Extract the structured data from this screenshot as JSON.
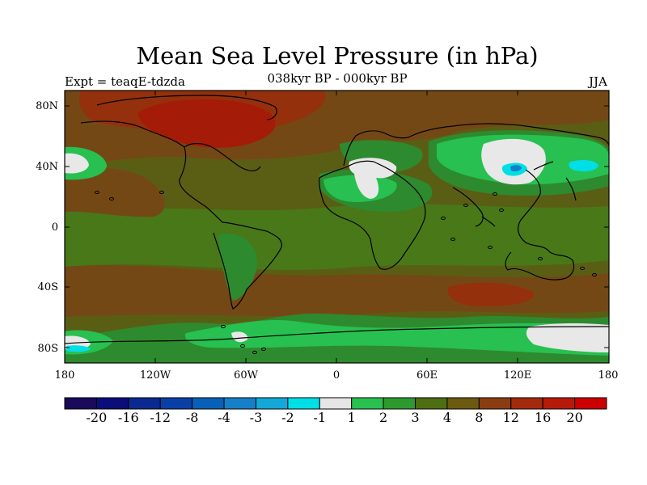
{
  "title": "Mean Sea Level Pressure (in hPa)",
  "subtitle": "038kyr BP - 000kyr BP",
  "experiment": "Expt = teaqE-tdzda",
  "season": "JJA",
  "lat_labels": [
    "80N",
    "40N",
    "0",
    "40S",
    "80S"
  ],
  "lon_labels": [
    "180",
    "120W",
    "60W",
    "0",
    "60E",
    "120E",
    "180"
  ],
  "colorbar": {
    "labels": [
      "-20",
      "-16",
      "-12",
      "-8",
      "-4",
      "-3",
      "-2",
      "-1",
      "1",
      "2",
      "3",
      "4",
      "8",
      "12",
      "16",
      "20"
    ],
    "colors": [
      "#1a0a5a",
      "#0b0e7a",
      "#0a2a92",
      "#0a3fa6",
      "#0860b8",
      "#1580c8",
      "#14a8d8",
      "#00dfe6",
      "#e6e6e6",
      "#28c050",
      "#2e9a2e",
      "#4e6e12",
      "#6b5a10",
      "#8a3e10",
      "#a42a0c",
      "#b81a0a",
      "#cc0000"
    ]
  },
  "colors": {
    "base": "#5a5e14",
    "tropics": "#487818",
    "brown": "#744814",
    "rust": "#94300c",
    "red": "#a41c08",
    "green": "#2e8a2e",
    "bright_green": "#28c050",
    "white": "#e8e8e8",
    "cyan": "#00dfe6",
    "blue": "#1580c8",
    "coast": "#000000"
  }
}
